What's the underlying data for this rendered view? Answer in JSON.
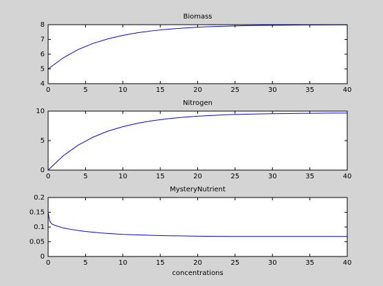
{
  "chart_data": [
    {
      "type": "line",
      "title": "Biomass",
      "x": [
        0,
        2,
        4,
        6,
        8,
        10,
        12,
        14,
        16,
        18,
        20,
        22,
        24,
        26,
        28,
        30,
        32,
        34,
        36,
        38,
        40
      ],
      "values": [
        5.0,
        5.75,
        6.31,
        6.73,
        7.04,
        7.28,
        7.46,
        7.59,
        7.69,
        7.77,
        7.83,
        7.87,
        7.9,
        7.93,
        7.95,
        7.96,
        7.97,
        7.98,
        7.98,
        7.99,
        7.99
      ],
      "color": "#0000ff",
      "xlim": [
        0,
        40
      ],
      "ylim": [
        4,
        8
      ],
      "xticks": [
        0,
        5,
        10,
        15,
        20,
        25,
        30,
        35,
        40
      ],
      "yticks": [
        4,
        5,
        6,
        7,
        8
      ]
    },
    {
      "type": "line",
      "title": "Nitrogen",
      "x": [
        0,
        2,
        4,
        6,
        8,
        10,
        12,
        14,
        16,
        18,
        20,
        22,
        24,
        26,
        28,
        30,
        32,
        34,
        36,
        38,
        40
      ],
      "values": [
        0,
        2.41,
        4.22,
        5.58,
        6.61,
        7.37,
        7.95,
        8.39,
        8.71,
        8.96,
        9.14,
        9.28,
        9.39,
        9.46,
        9.52,
        9.57,
        9.6,
        9.62,
        9.64,
        9.66,
        9.67
      ],
      "color": "#0000ff",
      "xlim": [
        0,
        40
      ],
      "ylim": [
        0,
        10
      ],
      "xticks": [
        0,
        5,
        10,
        15,
        20,
        25,
        30,
        35,
        40
      ],
      "yticks": [
        0,
        5,
        10
      ]
    },
    {
      "type": "line",
      "title": "MysteryNutrient",
      "xlabel": "concentrations",
      "x": [
        0,
        0.2,
        0.5,
        1,
        2,
        3,
        5,
        7,
        10,
        15,
        20,
        25,
        30,
        35,
        40
      ],
      "values": [
        0.15,
        0.12,
        0.11,
        0.105,
        0.097,
        0.092,
        0.085,
        0.08,
        0.075,
        0.071,
        0.069,
        0.068,
        0.068,
        0.068,
        0.068
      ],
      "color": "#0000ff",
      "xlim": [
        0,
        40
      ],
      "ylim": [
        0,
        0.2
      ],
      "xticks": [
        0,
        5,
        10,
        15,
        20,
        25,
        30,
        35,
        40
      ],
      "yticks": [
        0,
        0.05,
        0.1,
        0.15,
        0.2
      ]
    }
  ]
}
